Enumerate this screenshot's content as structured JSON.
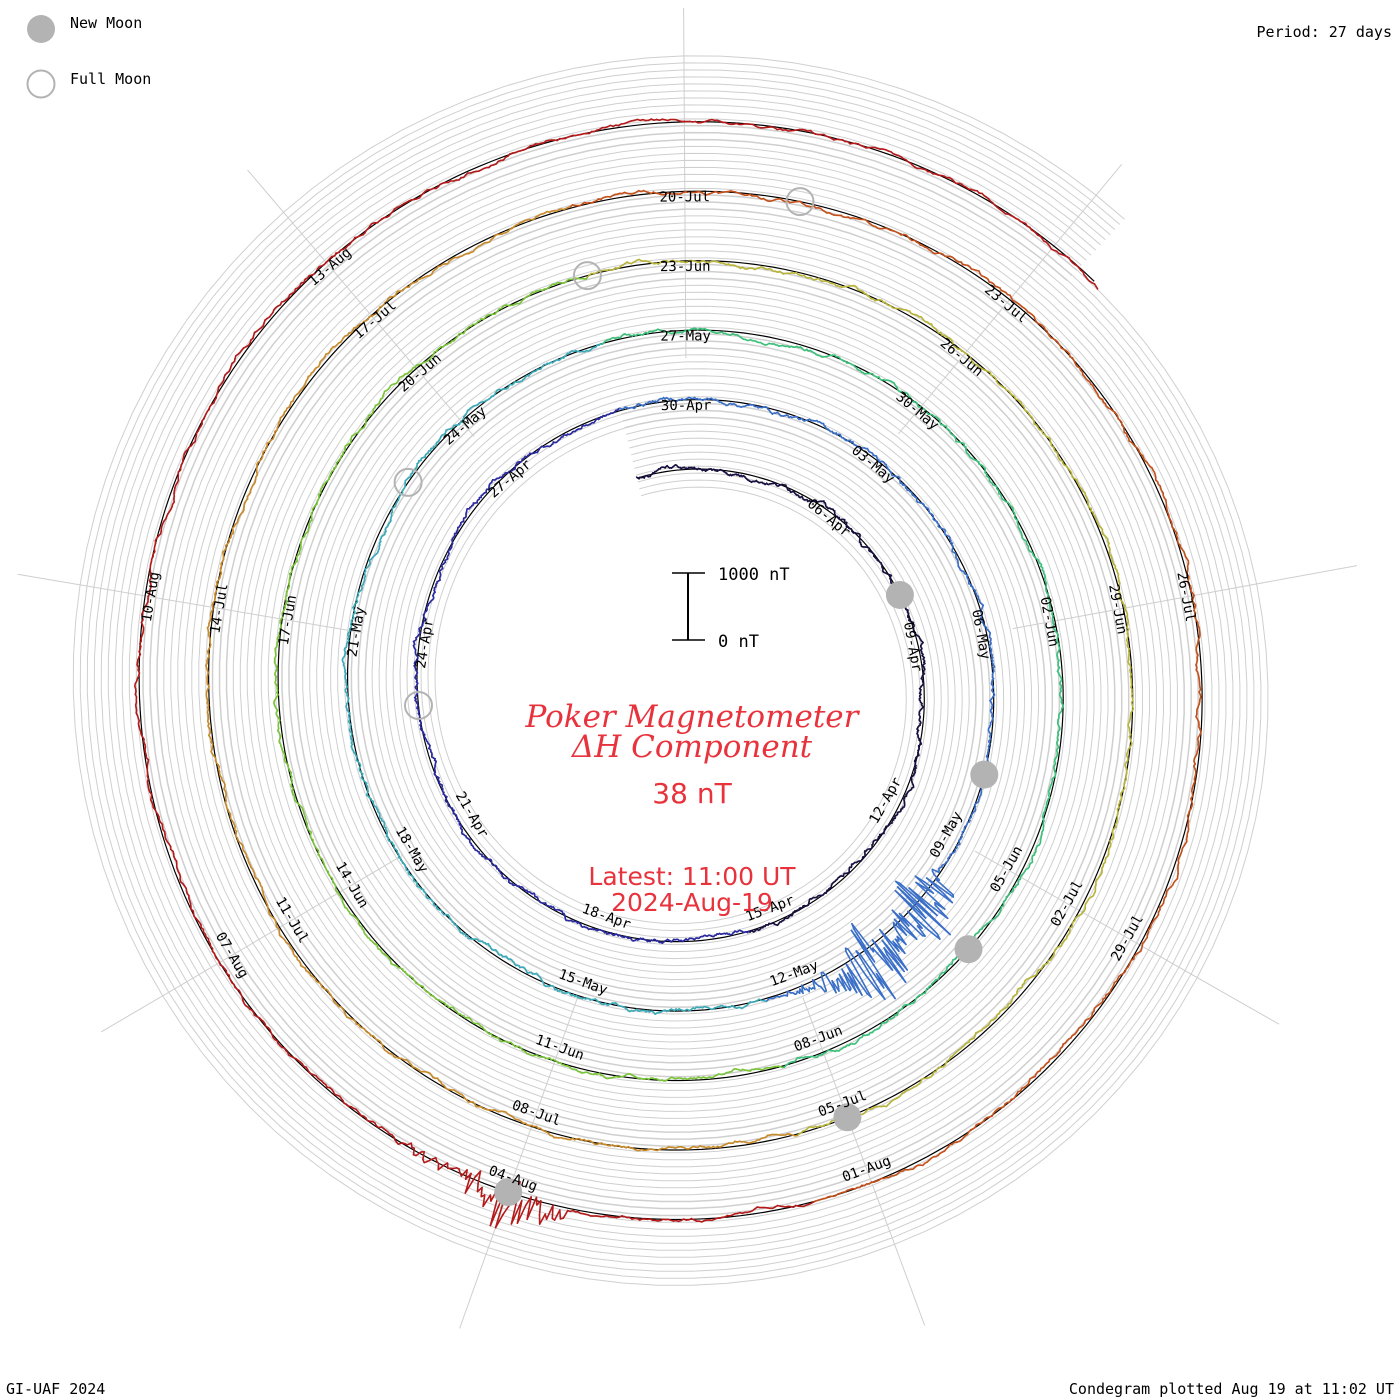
{
  "legend": {
    "new_moon_label": "New Moon",
    "full_moon_label": "Full Moon",
    "new_moon_color": "#b3b3b3",
    "full_moon_color": "#b3b3b3"
  },
  "header": {
    "period": "Period: 27 days"
  },
  "footer": {
    "credit": "GI-UAF 2024",
    "plotted": "Condegram plotted Aug 19 at 11:02 UT"
  },
  "center": {
    "title_line1": "Poker Magnetometer",
    "title_line2": "ΔH Component",
    "value": "38 nT",
    "latest_line1": "Latest: 11:00 UT",
    "latest_line2": "2024-Aug-19",
    "text_color": "#e8323c"
  },
  "scale_bar": {
    "top_label": "1000 nT",
    "bottom_label": "0 nT"
  },
  "chart_data": {
    "type": "line",
    "title": "Poker Magnetometer ΔH Component",
    "period_days": 27,
    "start_date": "2024-04-02",
    "end_date": "2024-08-19",
    "scale": {
      "min_nT": 0,
      "max_nT": 1000
    },
    "date_labels": [
      "06-Apr",
      "09-Apr",
      "12-Apr",
      "15-Apr",
      "18-Apr",
      "21-Apr",
      "24-Apr",
      "27-Apr",
      "30-Apr",
      "03-May",
      "06-May",
      "09-May",
      "12-May",
      "15-May",
      "18-May",
      "21-May",
      "24-May",
      "27-May",
      "30-May",
      "02-Jun",
      "05-Jun",
      "08-Jun",
      "11-Jun",
      "14-Jun",
      "17-Jun",
      "20-Jun",
      "23-Jun",
      "26-Jun",
      "29-Jun",
      "02-Jul",
      "05-Jul",
      "08-Jul",
      "11-Jul",
      "14-Jul",
      "17-Jul",
      "20-Jul",
      "23-Jul",
      "26-Jul",
      "29-Jul",
      "01-Aug",
      "04-Aug",
      "07-Aug",
      "10-Aug",
      "13-Aug"
    ],
    "series_colors": [
      "#1a1040",
      "#2a2aa0",
      "#3a6fc8",
      "#3aaab8",
      "#3cc07a",
      "#7ac43a",
      "#b8b43a",
      "#c88a2a",
      "#c4501a",
      "#b41a1a"
    ],
    "new_moons": [
      "2024-04-08",
      "2024-05-08",
      "2024-06-06",
      "2024-07-05",
      "2024-08-04"
    ],
    "full_moons": [
      "2024-04-23",
      "2024-05-23",
      "2024-06-22",
      "2024-07-21"
    ],
    "storm_events": [
      {
        "date": "2024-05-10",
        "peak_nT": 1500
      },
      {
        "date": "2024-05-11",
        "peak_nT": 1700
      },
      {
        "date": "2024-08-04",
        "peak_nT": 900
      }
    ]
  }
}
